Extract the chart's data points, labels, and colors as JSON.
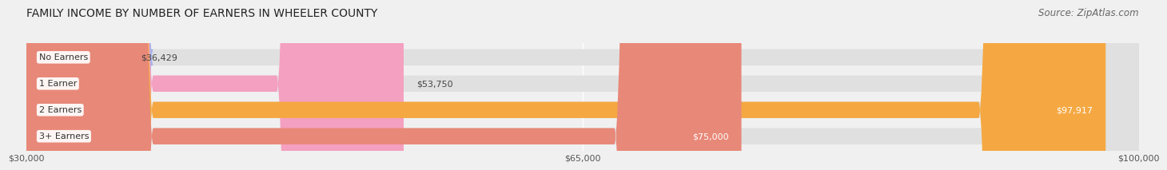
{
  "title": "FAMILY INCOME BY NUMBER OF EARNERS IN WHEELER COUNTY",
  "source": "Source: ZipAtlas.com",
  "categories": [
    "No Earners",
    "1 Earner",
    "2 Earners",
    "3+ Earners"
  ],
  "values": [
    36429,
    53750,
    97917,
    75000
  ],
  "bar_colors": [
    "#a8b4e8",
    "#f4a0c0",
    "#f5a842",
    "#e88878"
  ],
  "label_colors": [
    "#333333",
    "#333333",
    "#ffffff",
    "#ffffff"
  ],
  "value_labels": [
    "$36,429",
    "$53,750",
    "$97,917",
    "$75,000"
  ],
  "xmin": 30000,
  "xmax": 100000,
  "xticks": [
    30000,
    65000,
    100000
  ],
  "xtick_labels": [
    "$30,000",
    "$65,000",
    "$100,000"
  ],
  "background_color": "#f0f0f0",
  "bar_background": "#e0e0e0",
  "title_fontsize": 10,
  "source_fontsize": 8.5
}
